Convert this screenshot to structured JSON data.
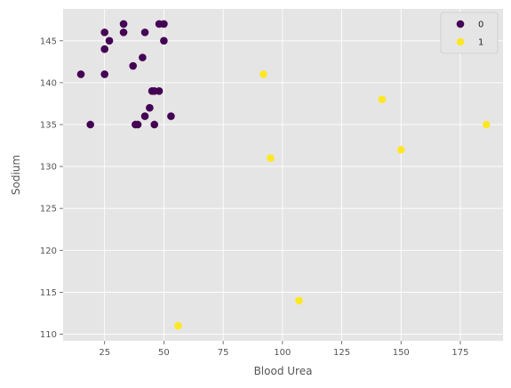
{
  "chart_data": {
    "type": "scatter",
    "xlabel": "Blood Urea",
    "ylabel": "Sodium",
    "xlim": [
      7.5,
      193
    ],
    "ylim": [
      109.2,
      148.8
    ],
    "xticks": [
      25,
      50,
      75,
      100,
      125,
      150,
      175
    ],
    "yticks": [
      110,
      115,
      120,
      125,
      130,
      135,
      140,
      145
    ],
    "grid": true,
    "legend": {
      "placement": "top-right"
    },
    "series": [
      {
        "name": "0",
        "color": "#440154",
        "points": [
          {
            "x": 15,
            "y": 141
          },
          {
            "x": 19,
            "y": 135
          },
          {
            "x": 25,
            "y": 146
          },
          {
            "x": 25,
            "y": 144
          },
          {
            "x": 25,
            "y": 141
          },
          {
            "x": 27,
            "y": 145
          },
          {
            "x": 33,
            "y": 147
          },
          {
            "x": 33,
            "y": 146
          },
          {
            "x": 37,
            "y": 142
          },
          {
            "x": 38,
            "y": 135
          },
          {
            "x": 39,
            "y": 135
          },
          {
            "x": 41,
            "y": 143
          },
          {
            "x": 42,
            "y": 146
          },
          {
            "x": 42,
            "y": 136
          },
          {
            "x": 44,
            "y": 137
          },
          {
            "x": 45,
            "y": 139
          },
          {
            "x": 46,
            "y": 139
          },
          {
            "x": 46,
            "y": 135
          },
          {
            "x": 48,
            "y": 147
          },
          {
            "x": 48,
            "y": 139
          },
          {
            "x": 50,
            "y": 147
          },
          {
            "x": 50,
            "y": 145
          },
          {
            "x": 53,
            "y": 136
          }
        ]
      },
      {
        "name": "1",
        "color": "#fde725",
        "points": [
          {
            "x": 56,
            "y": 111
          },
          {
            "x": 92,
            "y": 141
          },
          {
            "x": 95,
            "y": 131
          },
          {
            "x": 107,
            "y": 114
          },
          {
            "x": 142,
            "y": 138
          },
          {
            "x": 150,
            "y": 132
          },
          {
            "x": 186,
            "y": 135
          }
        ]
      }
    ]
  }
}
